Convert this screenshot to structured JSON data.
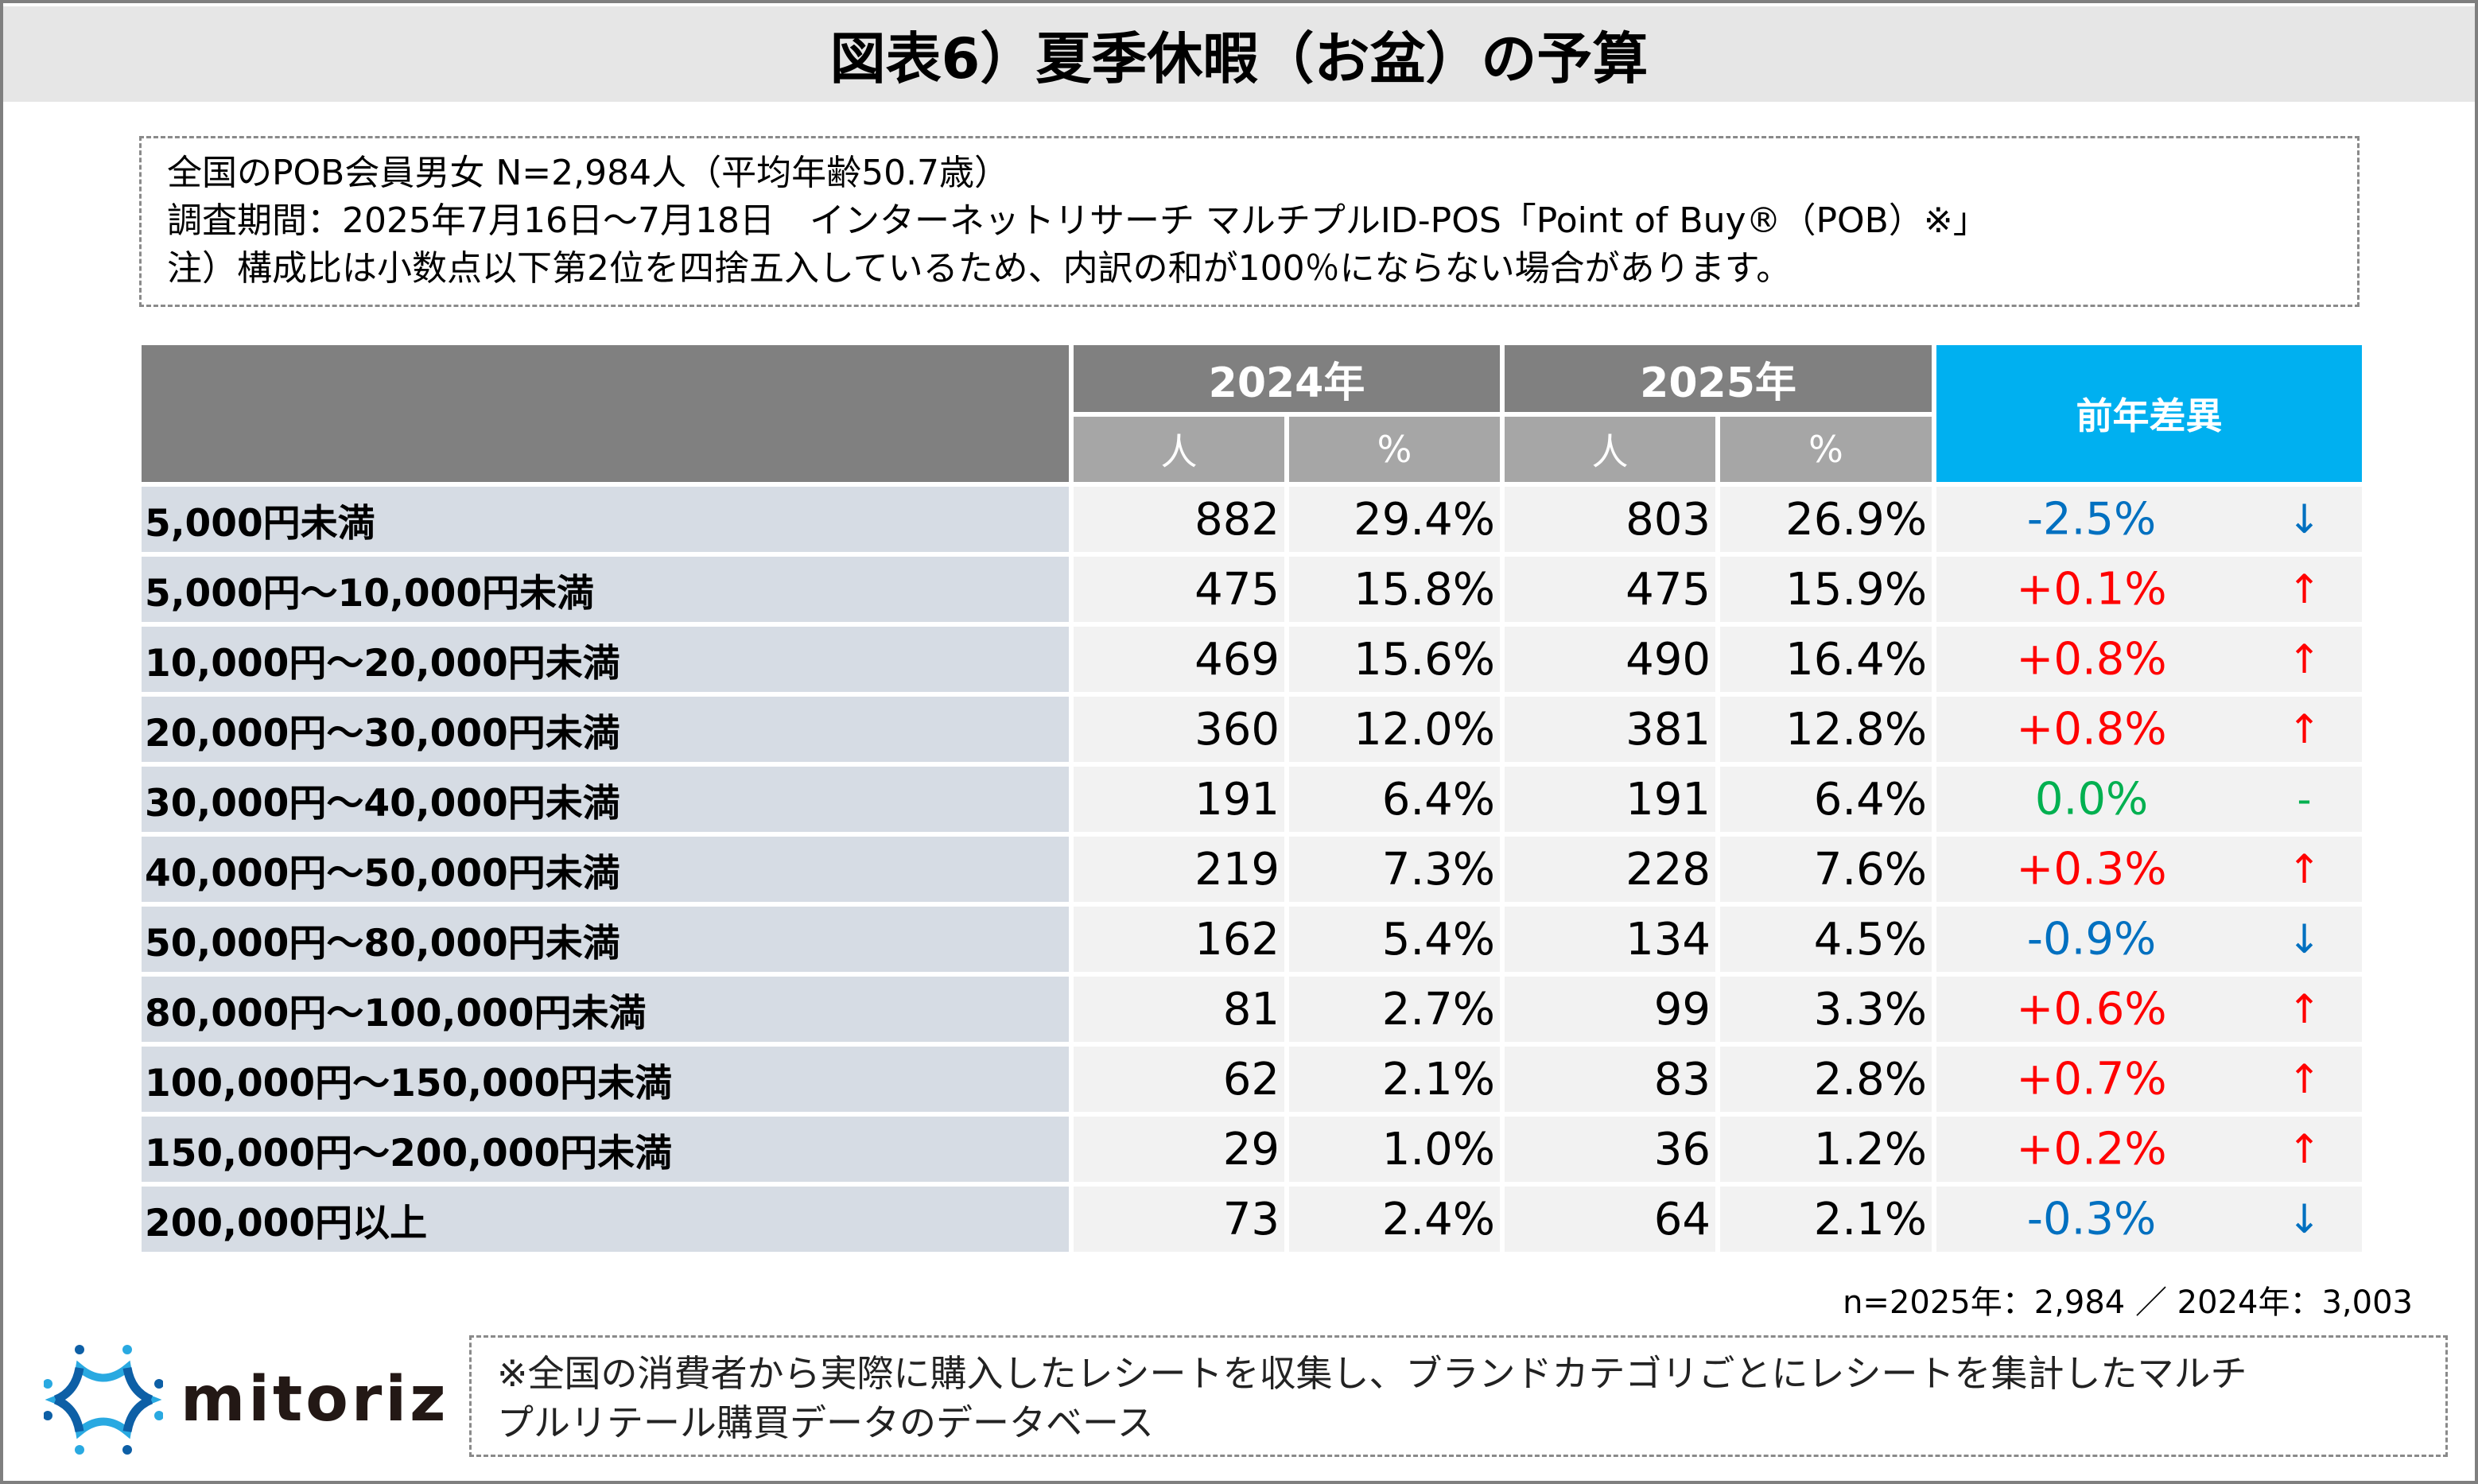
{
  "title": "図表6）夏季休暇（お盆）の予算",
  "info": {
    "line1": "全国のPOB会員男女 N=2,984人（平均年齢50.7歳）",
    "line2": "調査期間：2025年7月16日～7月18日　インターネットリサーチ マルチプルID-POS「Point of Buy®（POB）※」",
    "line3": "注）構成比は小数点以下第2位を四捨五入しているため、内訳の和が100％にならない場合があります。"
  },
  "header": {
    "year1": "2024年",
    "year2": "2025年",
    "people": "人",
    "pct": "%",
    "diff": "前年差異"
  },
  "colors": {
    "up": "#ff0000",
    "down": "#0070c0",
    "flat": "#00b050"
  },
  "rows": [
    {
      "label": "5,000円未満",
      "p24": "882",
      "r24": "29.4%",
      "p25": "803",
      "r25": "26.9%",
      "diff": "-2.5%",
      "arrow": "↓",
      "trend": "down"
    },
    {
      "label": "5,000円～10,000円未満",
      "p24": "475",
      "r24": "15.8%",
      "p25": "475",
      "r25": "15.9%",
      "diff": "+0.1%",
      "arrow": "↑",
      "trend": "up"
    },
    {
      "label": "10,000円～20,000円未満",
      "p24": "469",
      "r24": "15.6%",
      "p25": "490",
      "r25": "16.4%",
      "diff": "+0.8%",
      "arrow": "↑",
      "trend": "up"
    },
    {
      "label": "20,000円～30,000円未満",
      "p24": "360",
      "r24": "12.0%",
      "p25": "381",
      "r25": "12.8%",
      "diff": "+0.8%",
      "arrow": "↑",
      "trend": "up"
    },
    {
      "label": "30,000円～40,000円未満",
      "p24": "191",
      "r24": "6.4%",
      "p25": "191",
      "r25": "6.4%",
      "diff": "0.0%",
      "arrow": "-",
      "trend": "flat"
    },
    {
      "label": "40,000円～50,000円未満",
      "p24": "219",
      "r24": "7.3%",
      "p25": "228",
      "r25": "7.6%",
      "diff": "+0.3%",
      "arrow": "↑",
      "trend": "up"
    },
    {
      "label": "50,000円～80,000円未満",
      "p24": "162",
      "r24": "5.4%",
      "p25": "134",
      "r25": "4.5%",
      "diff": "-0.9%",
      "arrow": "↓",
      "trend": "down"
    },
    {
      "label": "80,000円～100,000円未満",
      "p24": "81",
      "r24": "2.7%",
      "p25": "99",
      "r25": "3.3%",
      "diff": "+0.6%",
      "arrow": "↑",
      "trend": "up"
    },
    {
      "label": "100,000円～150,000円未満",
      "p24": "62",
      "r24": "2.1%",
      "p25": "83",
      "r25": "2.8%",
      "diff": "+0.7%",
      "arrow": "↑",
      "trend": "up"
    },
    {
      "label": "150,000円～200,000円未満",
      "p24": "29",
      "r24": "1.0%",
      "p25": "36",
      "r25": "1.2%",
      "diff": "+0.2%",
      "arrow": "↑",
      "trend": "up"
    },
    {
      "label": "200,000円以上",
      "p24": "73",
      "r24": "2.4%",
      "p25": "64",
      "r25": "2.1%",
      "diff": "-0.3%",
      "arrow": "↓",
      "trend": "down"
    }
  ],
  "note": "n=2025年：2,984 ／ 2024年：3,003",
  "footnote": {
    "line1": "※全国の消費者から実際に購入したレシートを収集し、ブランドカテゴリごとにレシートを集計したマルチ",
    "line2": "プルリテール購買データのデータベース"
  },
  "logo": {
    "text": "mitoriz"
  }
}
